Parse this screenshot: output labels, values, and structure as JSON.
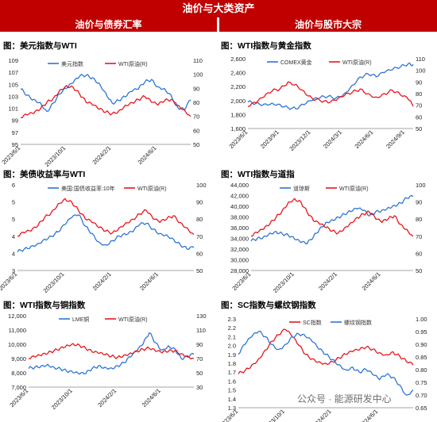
{
  "header": {
    "title": "油价与大类资产",
    "left_section": "油价与债券汇率",
    "right_section": "油价与股市大宗"
  },
  "watermark": "公众号 · 能源研发中心",
  "colors": {
    "header_bg": "#c00000",
    "series_blue": "#2e75d6",
    "series_red": "#e8161d"
  },
  "chart_data": [
    {
      "type": "line",
      "title": "图：美元指数与WTI",
      "x_tick_labels": [
        "2023/6/1",
        "2023/10/1",
        "2024/2/1",
        "2024/6/1"
      ],
      "x_tick_pos": [
        0,
        0.333,
        0.666,
        1.0
      ],
      "left_axis": {
        "ticks": [
          "109",
          "107",
          "105",
          "103",
          "101",
          "99",
          "97",
          "95"
        ],
        "min": 95,
        "max": 109
      },
      "right_axis": {
        "ticks": [
          "110",
          "100",
          "90",
          "80",
          "70",
          "60",
          "50"
        ],
        "min": 50,
        "max": 110
      },
      "series": [
        {
          "name": "美元指数",
          "axis": "left",
          "color": "#2e75d6",
          "x": [
            0,
            0.05,
            0.1,
            0.15,
            0.2,
            0.25,
            0.3,
            0.35,
            0.4,
            0.45,
            0.5,
            0.55,
            0.6,
            0.65,
            0.7,
            0.75,
            0.8,
            0.85,
            0.9,
            0.95,
            1.0,
            1.05,
            1.1,
            1.15,
            1.2,
            1.25,
            1.3
          ],
          "values": [
            104.2,
            103.2,
            102.5,
            102.0,
            100.5,
            101.9,
            103.4,
            104.3,
            105.2,
            106.3,
            106.5,
            106.1,
            105.2,
            103.6,
            101.9,
            102.3,
            102.9,
            103.8,
            104.2,
            105.4,
            105.8,
            104.6,
            104.3,
            103.2,
            101.2,
            100.7,
            102.4
          ]
        },
        {
          "name": "WTI原油(R)",
          "axis": "right",
          "color": "#e8161d",
          "x": [
            0,
            0.05,
            0.1,
            0.15,
            0.2,
            0.25,
            0.3,
            0.35,
            0.4,
            0.45,
            0.5,
            0.55,
            0.6,
            0.65,
            0.7,
            0.75,
            0.8,
            0.85,
            0.9,
            0.95,
            1.0,
            1.05,
            1.1,
            1.15,
            1.2,
            1.25,
            1.3
          ],
          "values": [
            69,
            71,
            72,
            75,
            80,
            83,
            89,
            92,
            91,
            86,
            80,
            78,
            75,
            73,
            72,
            74,
            78,
            80,
            82,
            84,
            80,
            78,
            81,
            82,
            78,
            75,
            70
          ]
        }
      ]
    },
    {
      "type": "line",
      "title": "图：WTI指数与黄金指数",
      "x_tick_labels": [
        "2023/6/1",
        "2023/9/1",
        "2023/12/1",
        "2024/3/1",
        "2024/6/1",
        "2024/9/1"
      ],
      "x_tick_pos": [
        0,
        0.2,
        0.4,
        0.6,
        0.8,
        1.0
      ],
      "left_axis": {
        "ticks": [
          "2,600",
          "2,400",
          "2,200",
          "2,000",
          "1,800",
          "1,600"
        ],
        "min": 1600,
        "max": 2600
      },
      "right_axis": {
        "ticks": [
          "110",
          "100",
          "90",
          "80",
          "70",
          "60",
          "50"
        ],
        "min": 50,
        "max": 110
      },
      "series": [
        {
          "name": "COMEX黄金",
          "axis": "left",
          "color": "#2e75d6",
          "x": [
            0,
            0.05,
            0.1,
            0.15,
            0.2,
            0.25,
            0.3,
            0.35,
            0.4,
            0.45,
            0.5,
            0.55,
            0.6,
            0.65,
            0.7,
            0.75,
            0.8,
            0.85,
            0.9,
            0.95,
            1.0,
            1.03
          ],
          "values": [
            1980,
            1960,
            1950,
            1965,
            1945,
            1900,
            1880,
            1940,
            2000,
            2040,
            2060,
            2040,
            2100,
            2220,
            2340,
            2380,
            2340,
            2400,
            2440,
            2480,
            2530,
            2520
          ]
        },
        {
          "name": "WTI原油(R)",
          "axis": "right",
          "color": "#e8161d",
          "x": [
            0,
            0.05,
            0.1,
            0.15,
            0.2,
            0.25,
            0.3,
            0.35,
            0.4,
            0.45,
            0.5,
            0.55,
            0.6,
            0.65,
            0.7,
            0.75,
            0.8,
            0.85,
            0.9,
            0.95,
            1.0,
            1.03
          ],
          "values": [
            69,
            72,
            77,
            82,
            84,
            90,
            88,
            82,
            76,
            74,
            72,
            74,
            78,
            81,
            84,
            80,
            77,
            80,
            83,
            79,
            75,
            69
          ]
        }
      ]
    },
    {
      "type": "line",
      "title": "图：美债收益率与WTI",
      "x_tick_labels": [
        "2023/6/1",
        "2023/10/1",
        "2024/2/1",
        "2024/6/1"
      ],
      "x_tick_pos": [
        0,
        0.333,
        0.666,
        1.0
      ],
      "left_axis": {
        "ticks": [
          "6",
          "5",
          "5",
          "4",
          "4",
          "3"
        ],
        "min": 3,
        "max": 6
      },
      "right_axis": {
        "ticks": [
          "100",
          "90",
          "80",
          "70",
          "60",
          "50"
        ],
        "min": 50,
        "max": 100
      },
      "series": [
        {
          "name": "美国:国债收益率:10年",
          "axis": "left",
          "color": "#2e75d6",
          "x": [
            0,
            0.05,
            0.1,
            0.15,
            0.2,
            0.25,
            0.3,
            0.35,
            0.4,
            0.45,
            0.5,
            0.55,
            0.6,
            0.65,
            0.7,
            0.75,
            0.8,
            0.85,
            0.9,
            0.95,
            1.0,
            1.05,
            1.1,
            1.15,
            1.2,
            1.25,
            1.3
          ],
          "values": [
            3.65,
            3.75,
            3.85,
            3.95,
            4.1,
            4.2,
            4.35,
            4.6,
            4.85,
            4.95,
            4.55,
            4.3,
            4.0,
            3.9,
            4.05,
            4.2,
            4.25,
            4.35,
            4.6,
            4.65,
            4.45,
            4.3,
            4.25,
            4.1,
            3.9,
            3.75,
            3.8
          ]
        },
        {
          "name": "WTI原油(R)",
          "axis": "right",
          "color": "#e8161d",
          "x": [
            0,
            0.05,
            0.1,
            0.15,
            0.2,
            0.25,
            0.3,
            0.35,
            0.4,
            0.45,
            0.5,
            0.55,
            0.6,
            0.65,
            0.7,
            0.75,
            0.8,
            0.85,
            0.9,
            0.95,
            1.0,
            1.05,
            1.1,
            1.15,
            1.2,
            1.25,
            1.3
          ],
          "values": [
            70,
            72,
            73,
            76,
            81,
            84,
            89,
            92,
            90,
            85,
            80,
            78,
            75,
            73,
            72,
            75,
            78,
            80,
            83,
            85,
            80,
            78,
            80,
            82,
            78,
            75,
            71
          ]
        }
      ]
    },
    {
      "type": "line",
      "title": "图：WTI指数与道指",
      "x_tick_labels": [
        "2023/6/1",
        "2023/10/1",
        "2024/2/1",
        "2024/6/1"
      ],
      "x_tick_pos": [
        0,
        0.333,
        0.666,
        1.0
      ],
      "left_axis": {
        "ticks": [
          "44,000",
          "42,000",
          "40,000",
          "38,000",
          "36,000",
          "34,000",
          "32,000",
          "30,000",
          "28,000"
        ],
        "min": 28000,
        "max": 44000
      },
      "right_axis": {
        "ticks": [
          "100",
          "90",
          "80",
          "70",
          "60",
          "50"
        ],
        "min": 50,
        "max": 100
      },
      "series": [
        {
          "name": "道琼斯",
          "axis": "left",
          "color": "#2e75d6",
          "x": [
            0,
            0.05,
            0.1,
            0.15,
            0.2,
            0.25,
            0.3,
            0.35,
            0.4,
            0.45,
            0.5,
            0.55,
            0.6,
            0.65,
            0.7,
            0.75,
            0.8,
            0.85,
            0.9,
            0.95,
            1.0,
            1.05,
            1.1,
            1.15,
            1.2,
            1.25,
            1.3
          ],
          "values": [
            33500,
            34000,
            34300,
            35000,
            35300,
            34900,
            34500,
            33800,
            33200,
            33000,
            34300,
            35800,
            37000,
            37500,
            38000,
            38500,
            39000,
            39500,
            39200,
            38200,
            39000,
            39300,
            39800,
            40200,
            40600,
            41500,
            41800
          ]
        },
        {
          "name": "WTI原油(R)",
          "axis": "right",
          "color": "#e8161d",
          "x": [
            0,
            0.05,
            0.1,
            0.15,
            0.2,
            0.25,
            0.3,
            0.35,
            0.4,
            0.45,
            0.5,
            0.55,
            0.6,
            0.65,
            0.7,
            0.75,
            0.8,
            0.85,
            0.9,
            0.95,
            1.0,
            1.05,
            1.1,
            1.15,
            1.2,
            1.25,
            1.3
          ],
          "values": [
            70,
            72,
            74,
            77,
            81,
            85,
            90,
            92,
            90,
            84,
            79,
            77,
            75,
            73,
            72,
            75,
            78,
            81,
            83,
            84,
            80,
            78,
            80,
            82,
            77,
            74,
            70
          ]
        }
      ]
    },
    {
      "type": "line",
      "title": "图：WTI指数与铜指数",
      "x_tick_labels": [
        "2023/6/1",
        "2023/10/1",
        "2024/2/1",
        "2024/6/1"
      ],
      "x_tick_pos": [
        0,
        0.333,
        0.666,
        1.0
      ],
      "left_axis": {
        "ticks": [
          "12,000",
          "11,000",
          "10,000",
          "9,000",
          "8,000",
          "7,000"
        ],
        "min": 7000,
        "max": 12000
      },
      "right_axis": {
        "ticks": [
          "130",
          "110",
          "90",
          "70",
          "50",
          "30"
        ],
        "min": 30,
        "max": 130
      },
      "series": [
        {
          "name": "LME铜",
          "axis": "left",
          "color": "#2e75d6",
          "x": [
            0,
            0.05,
            0.1,
            0.15,
            0.2,
            0.25,
            0.3,
            0.35,
            0.4,
            0.45,
            0.5,
            0.55,
            0.6,
            0.65,
            0.7,
            0.75,
            0.8,
            0.85,
            0.9,
            0.95,
            1.0,
            1.05,
            1.1,
            1.15,
            1.2,
            1.25,
            1.3
          ],
          "values": [
            8300,
            8400,
            8500,
            8600,
            8400,
            8300,
            8100,
            8000,
            7900,
            7950,
            8300,
            8500,
            8400,
            8350,
            8500,
            8700,
            9100,
            9500,
            10000,
            10800,
            10100,
            9600,
            9900,
            9700,
            9000,
            9100,
            9300
          ]
        },
        {
          "name": "WTI原油(R)",
          "axis": "right",
          "color": "#e8161d",
          "x": [
            0,
            0.05,
            0.1,
            0.15,
            0.2,
            0.25,
            0.3,
            0.35,
            0.4,
            0.45,
            0.5,
            0.55,
            0.6,
            0.65,
            0.7,
            0.75,
            0.8,
            0.85,
            0.9,
            0.95,
            1.0,
            1.05,
            1.1,
            1.15,
            1.2,
            1.25,
            1.3
          ],
          "values": [
            70,
            72,
            74,
            77,
            81,
            85,
            89,
            91,
            89,
            84,
            79,
            77,
            75,
            73,
            72,
            75,
            78,
            81,
            83,
            84,
            80,
            78,
            80,
            81,
            77,
            74,
            70
          ]
        }
      ]
    },
    {
      "type": "line",
      "title": "图：SC指数与螺纹钢指数",
      "x_tick_labels": [
        "2023/6/1",
        "2023/10/1",
        "2024/2/1",
        "2024/6/1"
      ],
      "x_tick_pos": [
        0,
        0.333,
        0.666,
        1.0
      ],
      "left_axis": {
        "ticks": [
          "2.3",
          "2.2",
          "2.1",
          "2.0",
          "1.9",
          "1.8",
          "1.7",
          "1.6",
          "1.5",
          "1.4",
          "1.3"
        ],
        "min": 1.3,
        "max": 2.3
      },
      "right_axis": {
        "ticks": [
          "1.00",
          "0.95",
          "0.90",
          "0.85",
          "0.80",
          "0.75",
          "0.70",
          "0.65"
        ],
        "min": 0.65,
        "max": 1.0
      },
      "series": [
        {
          "name": "SC指数",
          "axis": "left",
          "color": "#e8161d",
          "x": [
            0,
            0.05,
            0.1,
            0.15,
            0.2,
            0.25,
            0.3,
            0.35,
            0.4,
            0.45,
            0.5,
            0.55,
            0.6,
            0.65,
            0.7,
            0.75,
            0.8,
            0.85,
            0.9,
            0.95,
            1.0,
            1.05,
            1.1,
            1.15,
            1.2,
            1.25,
            1.3
          ],
          "values": [
            1.68,
            1.72,
            1.78,
            1.85,
            1.95,
            2.05,
            2.12,
            2.18,
            2.1,
            2.0,
            1.9,
            1.85,
            1.82,
            1.8,
            1.82,
            1.86,
            1.9,
            1.93,
            1.95,
            1.98,
            1.96,
            1.92,
            1.9,
            1.93,
            1.88,
            1.82,
            1.78
          ]
        },
        {
          "name": "螺纹钢指数",
          "axis": "right",
          "color": "#2e75d6",
          "x": [
            0,
            0.05,
            0.1,
            0.15,
            0.2,
            0.25,
            0.3,
            0.35,
            0.4,
            0.45,
            0.5,
            0.55,
            0.6,
            0.65,
            0.7,
            0.75,
            0.8,
            0.85,
            0.9,
            0.95,
            1.0,
            1.05,
            1.1,
            1.15,
            1.2,
            1.25,
            1.3
          ],
          "values": [
            0.86,
            0.9,
            0.93,
            0.95,
            0.93,
            0.9,
            0.88,
            0.9,
            0.93,
            0.94,
            0.93,
            0.91,
            0.88,
            0.86,
            0.84,
            0.82,
            0.8,
            0.81,
            0.79,
            0.8,
            0.78,
            0.76,
            0.78,
            0.77,
            0.74,
            0.7,
            0.72
          ]
        }
      ]
    }
  ]
}
